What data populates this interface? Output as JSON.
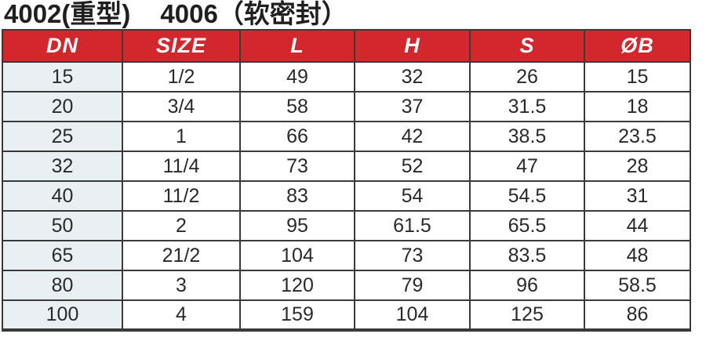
{
  "title": {
    "left": "4002(重型)",
    "right": "4006（软密封）"
  },
  "colors": {
    "header_bg": "#d2282d",
    "header_text": "#ffffff",
    "dn_col_bg": "#e9f0f3",
    "border": "#3a3a3a",
    "text": "#2a2a2a",
    "title_text": "#1f1f1f",
    "page_bg": "#ffffff"
  },
  "table": {
    "columns": [
      "DN",
      "SIZE",
      "L",
      "H",
      "S",
      "ØB"
    ],
    "rows": [
      [
        "15",
        "1/2",
        "49",
        "32",
        "26",
        "15"
      ],
      [
        "20",
        "3/4",
        "58",
        "37",
        "31.5",
        "18"
      ],
      [
        "25",
        "1",
        "66",
        "42",
        "38.5",
        "23.5"
      ],
      [
        "32",
        "11/4",
        "73",
        "52",
        "47",
        "28"
      ],
      [
        "40",
        "11/2",
        "83",
        "54",
        "54.5",
        "31"
      ],
      [
        "50",
        "2",
        "95",
        "61.5",
        "65.5",
        "44"
      ],
      [
        "65",
        "21/2",
        "104",
        "73",
        "83.5",
        "48"
      ],
      [
        "80",
        "3",
        "120",
        "79",
        "96",
        "58.5"
      ],
      [
        "100",
        "4",
        "159",
        "104",
        "125",
        "86"
      ]
    ]
  }
}
